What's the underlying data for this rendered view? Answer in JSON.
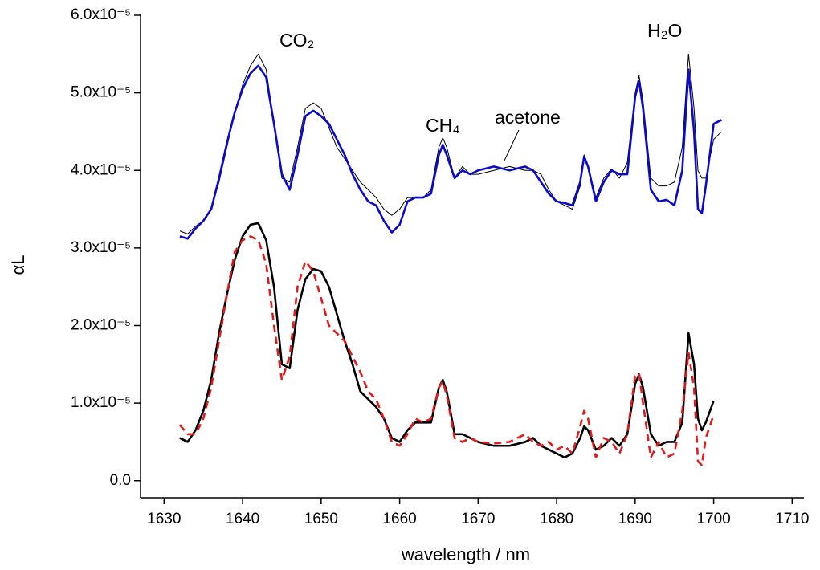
{
  "chart_data": {
    "type": "line",
    "xlabel": "wavelength / nm",
    "ylabel": "αL",
    "x": [
      1632,
      1633,
      1634,
      1635,
      1636,
      1637,
      1638,
      1639,
      1640,
      1641,
      1642,
      1643,
      1644,
      1645,
      1646,
      1647,
      1648,
      1649,
      1650,
      1651,
      1652,
      1653,
      1654,
      1655,
      1656,
      1657,
      1658,
      1659,
      1660,
      1661,
      1662,
      1663,
      1664,
      1665,
      1665.5,
      1666,
      1667,
      1668,
      1669,
      1670,
      1672,
      1674,
      1676,
      1677,
      1678,
      1679,
      1680,
      1681,
      1682,
      1683,
      1683.5,
      1684,
      1685,
      1686,
      1687,
      1688,
      1689,
      1690,
      1690.5,
      1691,
      1692,
      1693,
      1694,
      1695,
      1696,
      1696.8,
      1697.5,
      1698,
      1698.5,
      1699,
      1700,
      1701
    ],
    "series": [
      {
        "color": "#000000",
        "linewidth": 1,
        "dashed": false,
        "values": [
          3.22e-05,
          3.18e-05,
          3.28e-05,
          3.35e-05,
          3.5e-05,
          3.85e-05,
          4.3e-05,
          4.75e-05,
          5.1e-05,
          5.35e-05,
          5.5e-05,
          5.3e-05,
          4.6e-05,
          3.9e-05,
          3.85e-05,
          4.3e-05,
          4.8e-05,
          4.87e-05,
          4.8e-05,
          4.55e-05,
          4.3e-05,
          4.15e-05,
          4e-05,
          3.85e-05,
          3.75e-05,
          3.65e-05,
          3.5e-05,
          3.42e-05,
          3.5e-05,
          3.65e-05,
          3.65e-05,
          3.65e-05,
          3.75e-05,
          4.3e-05,
          4.42e-05,
          4.3e-05,
          3.9e-05,
          4.05e-05,
          3.95e-05,
          3.95e-05,
          4e-05,
          4.05e-05,
          4e-05,
          4e-05,
          3.95e-05,
          3.75e-05,
          3.6e-05,
          3.55e-05,
          3.5e-05,
          3.8e-05,
          4.2e-05,
          4.05e-05,
          3.65e-05,
          3.9e-05,
          4.02e-05,
          3.9e-05,
          4.1e-05,
          5e-05,
          5.22e-05,
          4.9e-05,
          3.9e-05,
          3.8e-05,
          3.8e-05,
          3.85e-05,
          4.3e-05,
          5.5e-05,
          4.8e-05,
          4e-05,
          3.9e-05,
          3.9e-05,
          4.4e-05,
          4.5e-05
        ]
      },
      {
        "color": "#0a0acc",
        "linewidth": 2.6,
        "dashed": false,
        "values": [
          3.15e-05,
          3.12e-05,
          3.25e-05,
          3.35e-05,
          3.5e-05,
          3.9e-05,
          4.35e-05,
          4.75e-05,
          5.05e-05,
          5.25e-05,
          5.35e-05,
          5.2e-05,
          4.6e-05,
          3.95e-05,
          3.75e-05,
          4.2e-05,
          4.7e-05,
          4.77e-05,
          4.7e-05,
          4.6e-05,
          4.4e-05,
          4.2e-05,
          3.95e-05,
          3.75e-05,
          3.6e-05,
          3.55e-05,
          3.35e-05,
          3.2e-05,
          3.3e-05,
          3.6e-05,
          3.65e-05,
          3.65e-05,
          3.7e-05,
          4.2e-05,
          4.33e-05,
          4.2e-05,
          3.9e-05,
          4e-05,
          3.95e-05,
          4e-05,
          4.05e-05,
          4e-05,
          4.05e-05,
          4e-05,
          3.85e-05,
          3.7e-05,
          3.6e-05,
          3.58e-05,
          3.55e-05,
          3.85e-05,
          4.18e-05,
          4.05e-05,
          3.6e-05,
          3.85e-05,
          4e-05,
          3.95e-05,
          3.95e-05,
          4.95e-05,
          5.15e-05,
          4.8e-05,
          3.75e-05,
          3.6e-05,
          3.62e-05,
          3.55e-05,
          4e-05,
          5.3e-05,
          4.5e-05,
          3.5e-05,
          3.45e-05,
          3.8e-05,
          4.6e-05,
          4.65e-05
        ]
      },
      {
        "color": "#000000",
        "linewidth": 2.6,
        "dashed": false,
        "values": [
          5.5e-06,
          5e-06,
          6.5e-06,
          9e-06,
          1.3e-05,
          1.9e-05,
          2.4e-05,
          2.85e-05,
          3.15e-05,
          3.3e-05,
          3.32e-05,
          3.1e-05,
          2.5e-05,
          1.5e-05,
          1.45e-05,
          2.2e-05,
          2.6e-05,
          2.73e-05,
          2.7e-05,
          2.5e-05,
          2.15e-05,
          1.8e-05,
          1.5e-05,
          1.15e-05,
          1.05e-05,
          9.5e-06,
          8e-06,
          5.5e-06,
          5e-06,
          6.5e-06,
          7.5e-06,
          7.5e-06,
          7.5e-06,
          1.2e-05,
          1.3e-05,
          1.15e-05,
          6e-06,
          6e-06,
          5.5e-06,
          5e-06,
          4.5e-06,
          4.5e-06,
          5e-06,
          5.5e-06,
          4.5e-06,
          4e-06,
          3.5e-06,
          3e-06,
          3.5e-06,
          5.5e-06,
          7e-06,
          6.5e-06,
          4e-06,
          4.5e-06,
          5.5e-06,
          4.5e-06,
          6e-06,
          1.25e-05,
          1.37e-05,
          1.2e-05,
          6e-06,
          4.5e-06,
          5e-06,
          5e-06,
          7.5e-06,
          1.9e-05,
          1.5e-05,
          8e-06,
          6.5e-06,
          7.5e-06,
          1.03e-05,
          null
        ]
      },
      {
        "color": "#e31a1c",
        "linewidth": 2.6,
        "dashed": true,
        "values": [
          7.2e-06,
          6e-06,
          6e-06,
          8e-06,
          1.2e-05,
          1.8e-05,
          2.4e-05,
          2.95e-05,
          3.1e-05,
          3.15e-05,
          3.1e-05,
          2.8e-05,
          2e-05,
          1.3e-05,
          1.6e-05,
          2.5e-05,
          2.83e-05,
          2.7e-05,
          2.35e-05,
          2e-05,
          1.9e-05,
          1.8e-05,
          1.6e-05,
          1.4e-05,
          1.15e-05,
          1.05e-05,
          8e-06,
          5e-06,
          4.5e-06,
          6e-06,
          8e-06,
          7.5e-06,
          8e-06,
          1.2e-05,
          1.28e-05,
          1.1e-05,
          5.5e-06,
          5e-06,
          5.5e-06,
          5e-06,
          4.8e-06,
          5e-06,
          6e-06,
          5e-06,
          4.5e-06,
          5e-06,
          4e-06,
          4.5e-06,
          3.5e-06,
          7e-06,
          9e-06,
          8e-06,
          3e-06,
          5.5e-06,
          5e-06,
          3.5e-06,
          6e-06,
          1.35e-05,
          1.38e-05,
          1e-05,
          3e-06,
          5e-06,
          3e-06,
          3.5e-06,
          9e-06,
          1.65e-05,
          1.2e-05,
          2.5e-06,
          2e-06,
          5.5e-06,
          8.5e-06,
          null
        ]
      }
    ],
    "xlim": [
      1627,
      1711.5
    ],
    "ylim": [
      -2.2e-06,
      6e-05
    ],
    "xticks": [
      1630,
      1640,
      1650,
      1660,
      1670,
      1680,
      1690,
      1700,
      1710
    ],
    "yticks": [
      {
        "value": 0,
        "label": "0.0"
      },
      {
        "value": 1e-05,
        "label": "1.0x10⁻⁵"
      },
      {
        "value": 2e-05,
        "label": "2.0x10⁻⁵"
      },
      {
        "value": 3e-05,
        "label": "3.0x10⁻⁵"
      },
      {
        "value": 4e-05,
        "label": "4.0x10⁻⁵"
      },
      {
        "value": 5e-05,
        "label": "5.0x10⁻⁵"
      },
      {
        "value": 6e-05,
        "label": "6.0x10⁻⁵"
      }
    ],
    "annotations": [
      {
        "text": "CO₂"
      },
      {
        "text": "CH₄"
      },
      {
        "text": "acetone"
      },
      {
        "text": "H₂O"
      }
    ]
  }
}
